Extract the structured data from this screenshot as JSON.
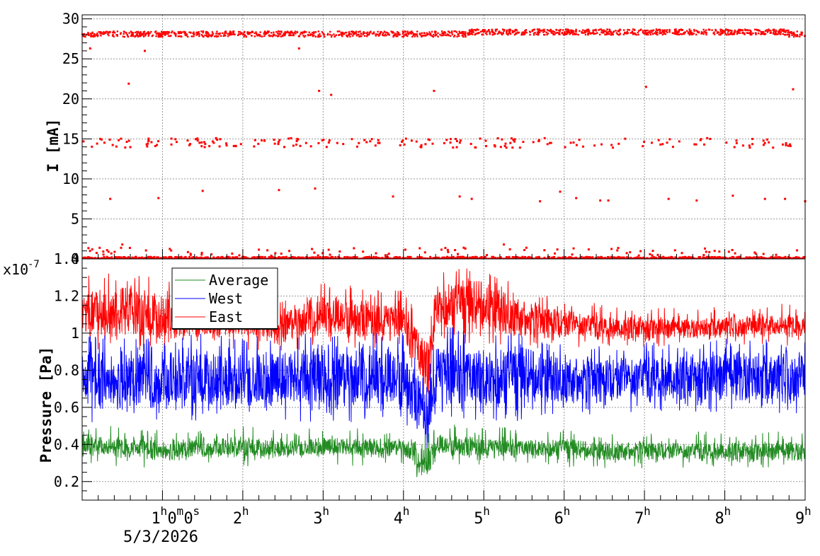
{
  "chart_data": [
    {
      "type": "scatter",
      "ylabel": "I [mA]",
      "ylim": [
        0,
        30.5
      ],
      "xlim_hours": [
        0,
        9
      ],
      "yticks": [
        0,
        5,
        10,
        15,
        20,
        25,
        30
      ],
      "ytick_labels": [
        "0",
        "5",
        "10",
        "15",
        "20",
        "25",
        "30"
      ],
      "series": [
        {
          "color": "#ff0000",
          "bands": [
            {
              "level": 28.1,
              "spread": 0.35,
              "from_h": 0.0,
              "to_h": 9.0,
              "note_values": "dense continuous band near 28 mA"
            },
            {
              "level": 14.5,
              "spread": 0.6,
              "from_h": 0.0,
              "to_h": 9.0
            },
            {
              "level": 0.1,
              "spread": 0.15,
              "from_h": 0.0,
              "to_h": 9.0
            }
          ],
          "outliers": [
            {
              "x_h": 0.58,
              "y": 21.9
            },
            {
              "x_h": 2.95,
              "y": 21.0
            },
            {
              "x_h": 3.1,
              "y": 20.5
            },
            {
              "x_h": 4.38,
              "y": 21.0
            },
            {
              "x_h": 7.02,
              "y": 21.5
            },
            {
              "x_h": 8.85,
              "y": 21.2
            },
            {
              "x_h": 0.35,
              "y": 7.5
            },
            {
              "x_h": 0.95,
              "y": 7.6
            },
            {
              "x_h": 1.5,
              "y": 8.5
            },
            {
              "x_h": 2.45,
              "y": 8.6
            },
            {
              "x_h": 2.9,
              "y": 8.8
            },
            {
              "x_h": 3.87,
              "y": 7.8
            },
            {
              "x_h": 4.7,
              "y": 7.8
            },
            {
              "x_h": 4.85,
              "y": 7.5
            },
            {
              "x_h": 5.7,
              "y": 7.2
            },
            {
              "x_h": 5.95,
              "y": 8.4
            },
            {
              "x_h": 6.15,
              "y": 7.6
            },
            {
              "x_h": 6.45,
              "y": 7.3
            },
            {
              "x_h": 6.55,
              "y": 7.3
            },
            {
              "x_h": 7.3,
              "y": 7.5
            },
            {
              "x_h": 7.65,
              "y": 7.3
            },
            {
              "x_h": 8.1,
              "y": 7.9
            },
            {
              "x_h": 8.5,
              "y": 7.5
            },
            {
              "x_h": 8.75,
              "y": 7.5
            },
            {
              "x_h": 9.0,
              "y": 7.2
            },
            {
              "x_h": 0.78,
              "y": 26.0
            },
            {
              "x_h": 0.1,
              "y": 26.3
            },
            {
              "x_h": 2.7,
              "y": 26.3
            },
            {
              "x_h": 0.5,
              "y": 1.8
            },
            {
              "x_h": 5.25,
              "y": 1.8
            }
          ]
        }
      ]
    },
    {
      "type": "line",
      "ylabel": "Pressure [Pa]",
      "y_multiplier": "x10",
      "y_multiplier_exp": "-7",
      "ylim": [
        0.1,
        1.4
      ],
      "xlim_hours": [
        0,
        9
      ],
      "yticks": [
        0.2,
        0.4,
        0.6,
        0.8,
        1.0,
        1.2,
        1.4
      ],
      "ytick_labels": [
        "0.2",
        "0.4",
        "0.6",
        "0.8",
        "1",
        "1.2",
        "1.4"
      ],
      "x_tick_hours": [
        1,
        2,
        3,
        4,
        5,
        6,
        7,
        8,
        9
      ],
      "x_tick_labels": [
        "1",
        "2",
        "3",
        "4",
        "5",
        "6",
        "7",
        "8",
        "9"
      ],
      "x_tick_suffix": "h",
      "x_first_tick_extra": [
        "0",
        "m",
        "0",
        "s"
      ],
      "x_date_label": "5/3/2026",
      "legend_placement": "top-left",
      "legend": [
        {
          "name": "Average",
          "color": "#228b22"
        },
        {
          "name": "West",
          "color": "#0000ff"
        },
        {
          "name": "East",
          "color": "#ff0000"
        }
      ],
      "series": [
        {
          "name": "East",
          "color": "#ff0000",
          "profile_h": [
            0,
            0.5,
            1,
            1.5,
            2,
            2.5,
            3,
            3.5,
            4,
            4.3,
            4.4,
            4.5,
            5,
            5.5,
            6,
            6.5,
            7,
            7.5,
            8,
            8.5,
            9
          ],
          "profile_min": [
            0.95,
            0.95,
            0.93,
            0.95,
            0.95,
            0.93,
            0.97,
            0.95,
            0.95,
            0.6,
            1.0,
            1.0,
            0.97,
            0.96,
            0.95,
            0.95,
            0.95,
            0.96,
            0.97,
            0.97,
            0.97
          ],
          "profile_max": [
            1.28,
            1.27,
            1.25,
            1.2,
            1.18,
            1.15,
            1.22,
            1.2,
            1.18,
            1.0,
            1.3,
            1.3,
            1.32,
            1.2,
            1.15,
            1.1,
            1.1,
            1.08,
            1.1,
            1.1,
            1.12
          ]
        },
        {
          "name": "West",
          "color": "#0000ff",
          "profile_h": [
            0,
            0.5,
            1,
            1.5,
            2,
            2.5,
            3,
            3.5,
            4,
            4.3,
            4.4,
            4.5,
            5,
            5.5,
            6,
            6.5,
            7,
            7.5,
            8,
            8.5,
            9
          ],
          "profile_min": [
            0.55,
            0.56,
            0.55,
            0.57,
            0.56,
            0.57,
            0.55,
            0.56,
            0.56,
            0.4,
            0.56,
            0.56,
            0.55,
            0.57,
            0.6,
            0.6,
            0.6,
            0.6,
            0.6,
            0.6,
            0.6
          ],
          "profile_max": [
            0.95,
            0.95,
            0.93,
            0.95,
            0.95,
            0.93,
            0.97,
            0.95,
            0.95,
            0.7,
            0.99,
            0.99,
            0.96,
            0.96,
            0.9,
            0.9,
            0.9,
            0.9,
            0.92,
            0.92,
            0.92
          ]
        },
        {
          "name": "Average",
          "color": "#228b22",
          "profile_h": [
            0,
            0.5,
            1,
            1.5,
            2,
            2.5,
            3,
            3.5,
            4,
            4.3,
            4.4,
            4.5,
            5,
            5.5,
            6,
            6.5,
            7,
            7.5,
            8,
            8.5,
            9
          ],
          "profile_min": [
            0.33,
            0.32,
            0.3,
            0.32,
            0.32,
            0.32,
            0.33,
            0.32,
            0.33,
            0.18,
            0.33,
            0.33,
            0.32,
            0.32,
            0.32,
            0.3,
            0.31,
            0.3,
            0.3,
            0.3,
            0.3
          ],
          "profile_max": [
            0.45,
            0.45,
            0.44,
            0.44,
            0.45,
            0.44,
            0.45,
            0.44,
            0.44,
            0.4,
            0.46,
            0.46,
            0.45,
            0.44,
            0.44,
            0.42,
            0.43,
            0.42,
            0.42,
            0.42,
            0.42
          ]
        }
      ]
    }
  ]
}
